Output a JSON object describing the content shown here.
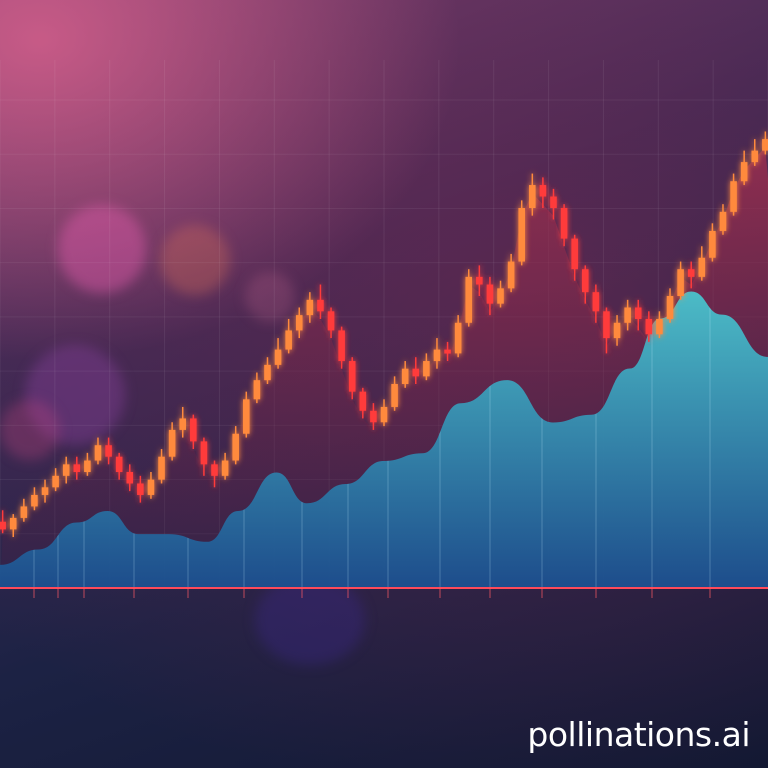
{
  "watermark": "pollinations.ai",
  "colors": {
    "area_fill_top": "#3fb6c9",
    "area_fill_bottom": "#1f5e9a",
    "red_area": "#8a2a4c",
    "candle_up": "#ff8a3c",
    "candle_down": "#ff3b3b",
    "baseline": "#ff4a4a"
  },
  "chart_data": {
    "type": "area",
    "title": "",
    "xlabel": "",
    "ylabel": "",
    "grid": true,
    "legend": "none",
    "series": [
      {
        "type": "candlestick",
        "values": [
          [
            0.4,
            0.38,
            0.43,
            0.37
          ],
          [
            0.38,
            0.41,
            0.42,
            0.36
          ],
          [
            0.41,
            0.44,
            0.46,
            0.4
          ],
          [
            0.44,
            0.47,
            0.49,
            0.43
          ],
          [
            0.47,
            0.49,
            0.51,
            0.45
          ],
          [
            0.49,
            0.52,
            0.54,
            0.48
          ],
          [
            0.52,
            0.55,
            0.57,
            0.5
          ],
          [
            0.55,
            0.53,
            0.57,
            0.51
          ],
          [
            0.53,
            0.56,
            0.58,
            0.52
          ],
          [
            0.56,
            0.6,
            0.62,
            0.55
          ],
          [
            0.6,
            0.57,
            0.62,
            0.55
          ],
          [
            0.57,
            0.53,
            0.58,
            0.51
          ],
          [
            0.53,
            0.5,
            0.55,
            0.48
          ],
          [
            0.5,
            0.47,
            0.52,
            0.45
          ],
          [
            0.47,
            0.51,
            0.53,
            0.46
          ],
          [
            0.51,
            0.57,
            0.59,
            0.5
          ],
          [
            0.57,
            0.64,
            0.66,
            0.56
          ],
          [
            0.64,
            0.67,
            0.7,
            0.62
          ],
          [
            0.67,
            0.61,
            0.68,
            0.59
          ],
          [
            0.61,
            0.55,
            0.62,
            0.52
          ],
          [
            0.55,
            0.52,
            0.56,
            0.49
          ],
          [
            0.52,
            0.56,
            0.58,
            0.51
          ],
          [
            0.56,
            0.63,
            0.65,
            0.55
          ],
          [
            0.63,
            0.72,
            0.74,
            0.62
          ],
          [
            0.72,
            0.77,
            0.79,
            0.71
          ],
          [
            0.77,
            0.81,
            0.83,
            0.76
          ],
          [
            0.81,
            0.85,
            0.88,
            0.8
          ],
          [
            0.85,
            0.9,
            0.93,
            0.84
          ],
          [
            0.9,
            0.94,
            0.96,
            0.88
          ],
          [
            0.94,
            0.98,
            1.0,
            0.92
          ],
          [
            0.98,
            0.95,
            1.02,
            0.93
          ],
          [
            0.95,
            0.9,
            0.96,
            0.88
          ],
          [
            0.9,
            0.82,
            0.91,
            0.8
          ],
          [
            0.82,
            0.74,
            0.83,
            0.72
          ],
          [
            0.74,
            0.69,
            0.75,
            0.67
          ],
          [
            0.69,
            0.66,
            0.71,
            0.64
          ],
          [
            0.66,
            0.7,
            0.72,
            0.65
          ],
          [
            0.7,
            0.76,
            0.78,
            0.69
          ],
          [
            0.76,
            0.8,
            0.82,
            0.75
          ],
          [
            0.8,
            0.78,
            0.83,
            0.76
          ],
          [
            0.78,
            0.82,
            0.84,
            0.77
          ],
          [
            0.82,
            0.85,
            0.88,
            0.8
          ],
          [
            0.85,
            0.84,
            0.87,
            0.82
          ],
          [
            0.84,
            0.92,
            0.94,
            0.83
          ],
          [
            0.92,
            1.04,
            1.06,
            0.91
          ],
          [
            1.04,
            1.02,
            1.07,
            0.99
          ],
          [
            1.02,
            0.97,
            1.04,
            0.94
          ],
          [
            0.97,
            1.01,
            1.03,
            0.96
          ],
          [
            1.01,
            1.08,
            1.1,
            1.0
          ],
          [
            1.08,
            1.22,
            1.24,
            1.07
          ],
          [
            1.22,
            1.28,
            1.31,
            1.2
          ],
          [
            1.28,
            1.25,
            1.3,
            1.22
          ],
          [
            1.25,
            1.22,
            1.27,
            1.19
          ],
          [
            1.22,
            1.14,
            1.23,
            1.12
          ],
          [
            1.14,
            1.06,
            1.15,
            1.03
          ],
          [
            1.06,
            1.0,
            1.07,
            0.97
          ],
          [
            1.0,
            0.95,
            1.02,
            0.92
          ],
          [
            0.95,
            0.88,
            0.96,
            0.84
          ],
          [
            0.88,
            0.92,
            0.94,
            0.86
          ],
          [
            0.92,
            0.96,
            0.98,
            0.9
          ],
          [
            0.96,
            0.93,
            0.98,
            0.9
          ],
          [
            0.93,
            0.89,
            0.95,
            0.87
          ],
          [
            0.89,
            0.93,
            0.95,
            0.88
          ],
          [
            0.93,
            0.99,
            1.01,
            0.92
          ],
          [
            0.99,
            1.06,
            1.08,
            0.98
          ],
          [
            1.06,
            1.04,
            1.08,
            1.01
          ],
          [
            1.04,
            1.09,
            1.12,
            1.03
          ],
          [
            1.09,
            1.16,
            1.18,
            1.08
          ],
          [
            1.16,
            1.21,
            1.23,
            1.15
          ],
          [
            1.21,
            1.29,
            1.31,
            1.2
          ],
          [
            1.29,
            1.34,
            1.37,
            1.28
          ],
          [
            1.34,
            1.37,
            1.4,
            1.33
          ],
          [
            1.37,
            1.4,
            1.42,
            1.36
          ]
        ]
      },
      {
        "type": "area",
        "x": [
          0,
          0.05,
          0.1,
          0.14,
          0.18,
          0.22,
          0.27,
          0.31,
          0.36,
          0.4,
          0.45,
          0.5,
          0.55,
          0.6,
          0.66,
          0.72,
          0.77,
          0.82,
          0.86,
          0.9,
          0.94,
          1.0
        ],
        "values": [
          0.06,
          0.1,
          0.17,
          0.2,
          0.14,
          0.14,
          0.12,
          0.2,
          0.3,
          0.22,
          0.27,
          0.33,
          0.35,
          0.48,
          0.54,
          0.43,
          0.45,
          0.57,
          0.7,
          0.77,
          0.71,
          0.6
        ]
      }
    ],
    "gridlines_x": 14,
    "gridlines_y": 9
  }
}
